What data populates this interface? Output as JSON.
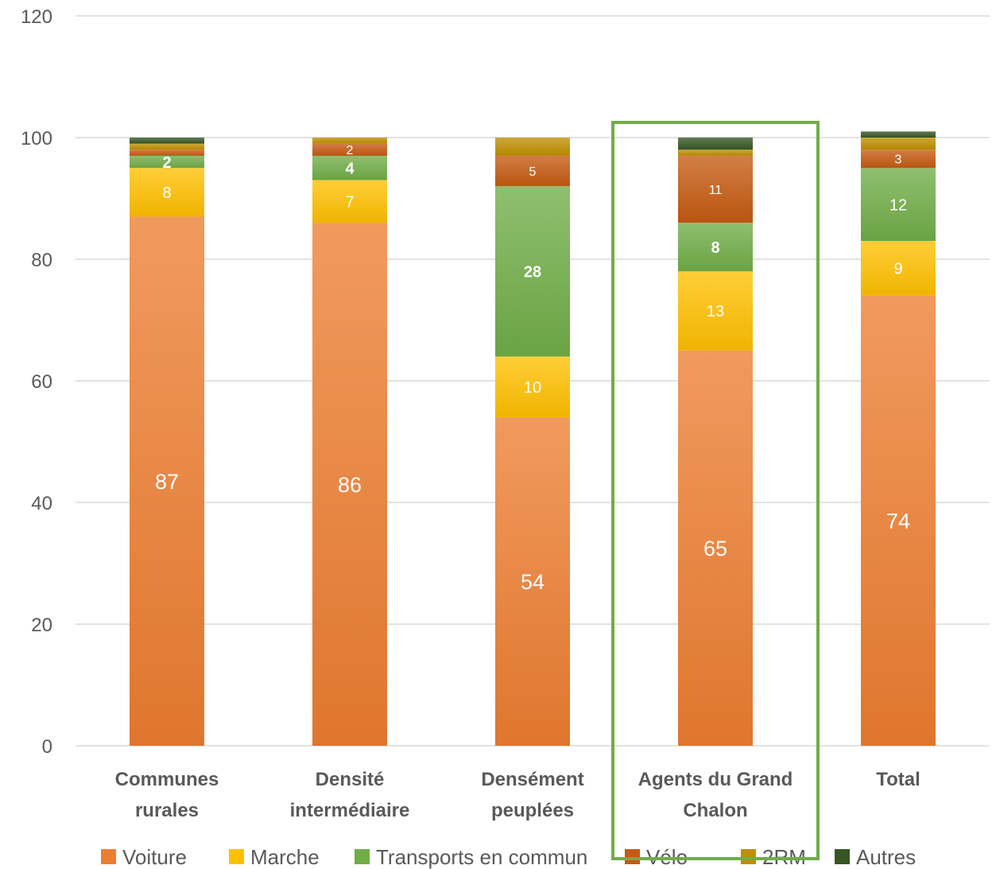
{
  "chart_data": {
    "type": "bar",
    "stacked": true,
    "title": "",
    "xlabel": "",
    "ylabel": "",
    "ylim": [
      0,
      120
    ],
    "yticks": [
      0,
      20,
      40,
      60,
      80,
      100,
      120
    ],
    "grid": true,
    "legend_position": "bottom",
    "categories": [
      [
        "Communes",
        "rurales"
      ],
      [
        "Densité",
        "intermédiaire"
      ],
      [
        "Densément",
        "peuplées"
      ],
      [
        "Agents du Grand",
        "Chalon"
      ],
      [
        "Total"
      ]
    ],
    "highlight_category": 3,
    "highlight_color": "#70ad47",
    "series": [
      {
        "name": "Voiture",
        "color": "#ed7d31",
        "values": [
          87,
          86,
          54,
          65,
          74
        ],
        "labels": [
          "87",
          "86",
          "54",
          "65",
          "74"
        ],
        "label_size": "large"
      },
      {
        "name": "Marche",
        "color": "#ffc000",
        "values": [
          8,
          7,
          10,
          13,
          9
        ],
        "labels": [
          "8",
          "7",
          "10",
          "13",
          "9"
        ],
        "label_size": "medium"
      },
      {
        "name": "Transports en commun",
        "color": "#70ad47",
        "values": [
          2,
          4,
          28,
          8,
          12
        ],
        "labels": [
          "2",
          "4",
          "28",
          "8",
          "12"
        ],
        "label_bold": [
          true,
          true,
          true,
          true,
          false
        ],
        "label_size": "medium"
      },
      {
        "name": "Vélo",
        "color": "#c55a11",
        "values": [
          1,
          2,
          5,
          11,
          3
        ],
        "labels": [
          "",
          "2",
          "5",
          "11",
          "3"
        ],
        "label_size": "small"
      },
      {
        "name": "2RM",
        "color": "#bf8f00",
        "values": [
          1,
          1,
          3,
          1,
          2
        ],
        "labels": [
          "",
          "",
          "",
          "",
          ""
        ],
        "label_size": "small"
      },
      {
        "name": "Autres",
        "color": "#375623",
        "values": [
          1,
          0,
          0,
          2,
          1
        ],
        "labels": [
          "",
          "",
          "",
          "",
          ""
        ],
        "label_size": "small"
      }
    ]
  }
}
